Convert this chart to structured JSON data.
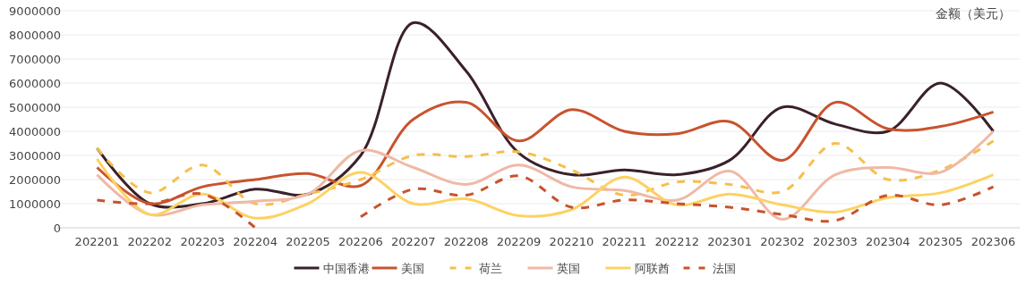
{
  "chart_data": {
    "type": "line",
    "ylabel": "金额（美元）",
    "categories": [
      "202201",
      "202202",
      "202203",
      "202204",
      "202205",
      "202206",
      "202207",
      "202208",
      "202209",
      "202210",
      "202211",
      "202212",
      "202301",
      "202302",
      "202303",
      "202304",
      "202305",
      "202306"
    ],
    "series": [
      {
        "name": "中国香港",
        "color": "#3a2129",
        "line_style": "solid",
        "values": [
          3300000,
          1000000,
          1000000,
          1600000,
          1400000,
          3000000,
          8500000,
          6500000,
          3100000,
          2200000,
          2400000,
          2200000,
          2800000,
          5000000,
          4300000,
          4000000,
          6000000,
          4000000
        ]
      },
      {
        "name": "美国",
        "color": "#c8532e",
        "line_style": "solid",
        "values": [
          2500000,
          1000000,
          1700000,
          2000000,
          2250000,
          1750000,
          4500000,
          5200000,
          3600000,
          4900000,
          4000000,
          3900000,
          4400000,
          2800000,
          5200000,
          4100000,
          4200000,
          4800000
        ]
      },
      {
        "name": "荷兰",
        "color": "#f6bf4c",
        "line_style": "dashed",
        "values": [
          3300000,
          1450000,
          2600000,
          1000000,
          1400000,
          2000000,
          3000000,
          2950000,
          3150000,
          2400000,
          1350000,
          1900000,
          1800000,
          1500000,
          3500000,
          2000000,
          2400000,
          3600000
        ]
      },
      {
        "name": "英国",
        "color": "#efb9a6",
        "line_style": "solid",
        "values": [
          2200000,
          550000,
          950000,
          1100000,
          1400000,
          3200000,
          2500000,
          1800000,
          2600000,
          1700000,
          1550000,
          1150000,
          2350000,
          350000,
          2200000,
          2500000,
          2300000,
          4000000
        ]
      },
      {
        "name": "阿联酋",
        "color": "#fdd262",
        "line_style": "solid",
        "values": [
          2850000,
          550000,
          1400000,
          400000,
          1000000,
          2300000,
          1000000,
          1200000,
          500000,
          750000,
          2100000,
          950000,
          1400000,
          950000,
          650000,
          1250000,
          1450000,
          2200000
        ]
      },
      {
        "name": "法国",
        "color": "#c8532e",
        "line_style": "dashed",
        "values": [
          1150000,
          1000000,
          1400000,
          0,
          null,
          450000,
          1600000,
          1350000,
          2150000,
          850000,
          1150000,
          1000000,
          850000,
          550000,
          300000,
          1350000,
          950000,
          1700000
        ]
      }
    ],
    "ylim": [
      0,
      9000000
    ],
    "yticks": [
      0,
      1000000,
      2000000,
      3000000,
      4000000,
      5000000,
      6000000,
      7000000,
      8000000,
      9000000
    ],
    "grid": "y",
    "legend": "bottom"
  }
}
